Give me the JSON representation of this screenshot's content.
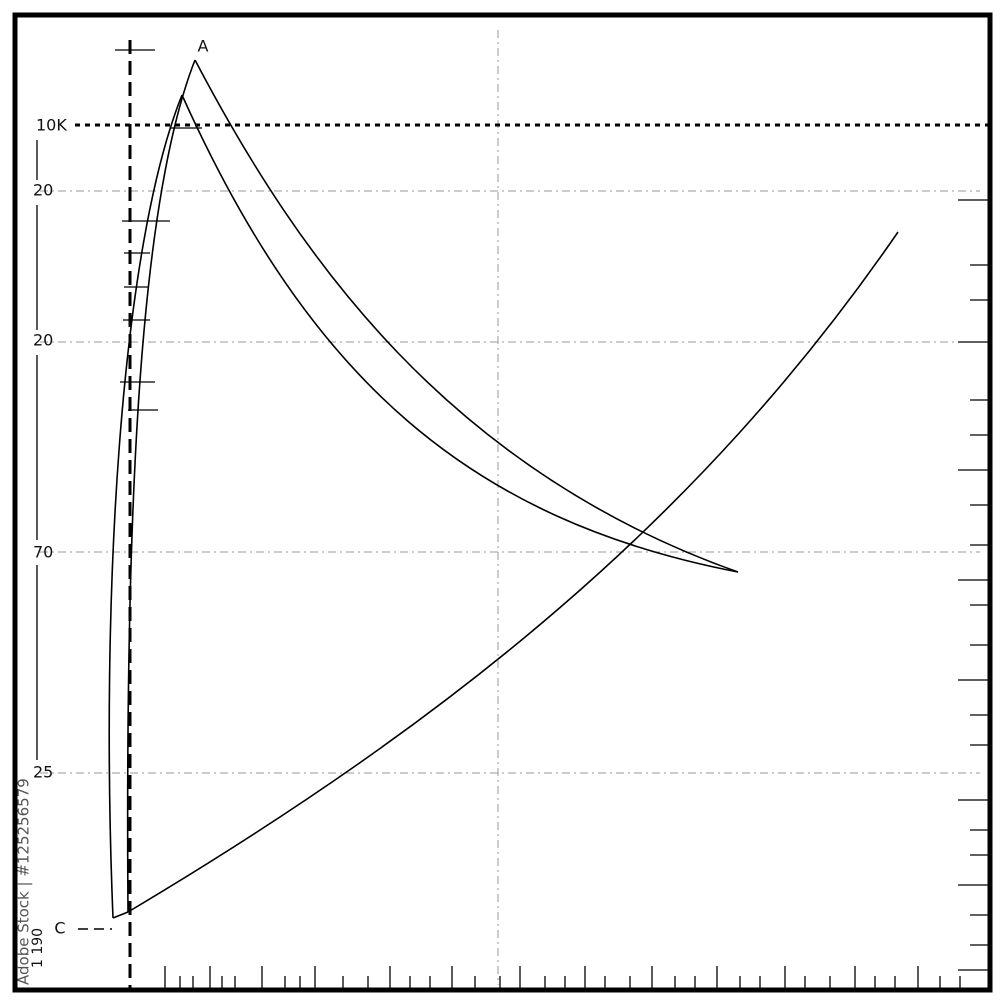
{
  "labels": {
    "point_a": "A",
    "point_c": "C",
    "top_level": "10K",
    "level_1": "20",
    "level_2": "20",
    "level_3": "70",
    "level_4": "25",
    "bottom_level": "1 190"
  },
  "watermark": "Adobe Stock | #125256579"
}
